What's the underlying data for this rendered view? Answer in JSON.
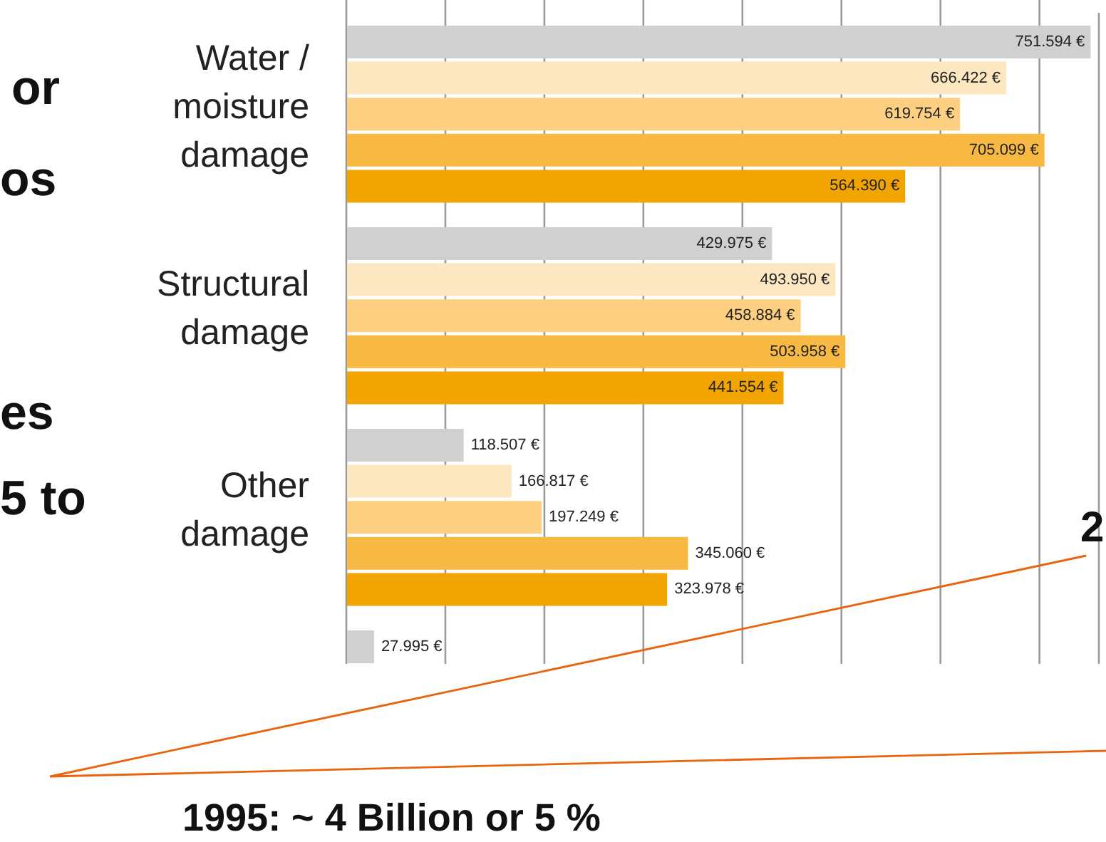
{
  "chart_data": {
    "type": "bar",
    "orientation": "horizontal",
    "categories": [
      "Water / moisture damage",
      "Structural damage",
      "Other damage",
      null
    ],
    "series": [
      {
        "color": "#cfd0cf",
        "values": [
          751594,
          429975,
          118507,
          27995
        ],
        "value_labels": [
          "751.594 €",
          "429.975 €",
          "118.507 €",
          "27.995 €"
        ]
      },
      {
        "color": "#fde7c1",
        "values": [
          666422,
          493950,
          166817,
          null
        ],
        "value_labels": [
          "666.422 €",
          "493.950 €",
          "166.817 €",
          null
        ]
      },
      {
        "color": "#fcd080",
        "values": [
          619754,
          458884,
          197249,
          null
        ],
        "value_labels": [
          "619.754 €",
          "458.884 €",
          "197.249 €",
          null
        ]
      },
      {
        "color": "#f8b942",
        "values": [
          705099,
          503958,
          345060,
          null
        ],
        "value_labels": [
          "705.099 €",
          "503.958 €",
          "345.060 €",
          null
        ]
      },
      {
        "color": "#f2a500",
        "values": [
          564390,
          441554,
          323978,
          null
        ],
        "value_labels": [
          "564.390 €",
          "441.554 €",
          "323.978 €",
          null
        ]
      }
    ],
    "xlim": [
      0,
      760000
    ],
    "xticks": [
      {
        "value": 0,
        "label": null
      },
      {
        "value": 100000,
        "label": null
      },
      {
        "value": 200000,
        "label": null
      },
      {
        "value": 300000,
        "label": null
      },
      {
        "value": 400000,
        "label": null
      },
      {
        "value": 500000,
        "label": null
      },
      {
        "value": 600000,
        "label": null
      },
      {
        "value": 700000,
        "label": null
      }
    ],
    "grid": "x",
    "annotations": [
      "or",
      "os",
      "es",
      "5 to",
      "2",
      "1995: ~ 4 Billion or 5 %"
    ]
  }
}
